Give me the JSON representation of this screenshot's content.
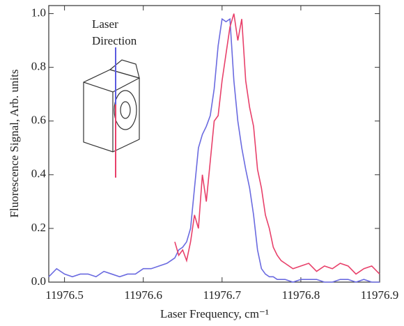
{
  "chart_data": {
    "type": "line",
    "xlabel": "Laser Frequency, cm⁻¹",
    "ylabel": "Fluorescence Signal, Arb. units",
    "annotation_lines": [
      "Laser",
      "Direction"
    ],
    "xlim": [
      11976.48,
      11976.9
    ],
    "ylim": [
      0,
      1.03
    ],
    "xticks": [
      11976.5,
      11976.6,
      11976.7,
      11976.8,
      11976.9
    ],
    "yticks": [
      {
        "value": 0,
        "label": "0.0"
      },
      {
        "value": 0.2,
        "label": "0.2"
      },
      {
        "value": 0.4,
        "label": "0.4"
      },
      {
        "value": 0.6,
        "label": "0.6"
      },
      {
        "value": 0.8,
        "label": "0.8"
      },
      {
        "value": 1,
        "label": "1.0"
      }
    ],
    "x": [
      11976.48,
      11976.49,
      11976.5,
      11976.51,
      11976.52,
      11976.53,
      11976.54,
      11976.55,
      11976.56,
      11976.57,
      11976.58,
      11976.59,
      11976.6,
      11976.61,
      11976.62,
      11976.63,
      11976.635,
      11976.64,
      11976.645,
      11976.65,
      11976.655,
      11976.66,
      11976.665,
      11976.67,
      11976.675,
      11976.68,
      11976.685,
      11976.69,
      11976.695,
      11976.7,
      11976.705,
      11976.71,
      11976.715,
      11976.72,
      11976.725,
      11976.73,
      11976.735,
      11976.74,
      11976.745,
      11976.75,
      11976.755,
      11976.76,
      11976.765,
      11976.77,
      11976.775,
      11976.78,
      11976.79,
      11976.8,
      11976.81,
      11976.82,
      11976.83,
      11976.84,
      11976.85,
      11976.86,
      11976.87,
      11976.88,
      11976.89,
      11976.9
    ],
    "series": [
      {
        "color": "#6a6ae0",
        "values": [
          0.02,
          0.05,
          0.03,
          0.02,
          0.03,
          0.03,
          0.02,
          0.04,
          0.03,
          0.02,
          0.03,
          0.03,
          0.05,
          0.05,
          0.06,
          0.07,
          0.08,
          0.09,
          0.12,
          0.13,
          0.15,
          0.2,
          0.35,
          0.5,
          0.55,
          0.58,
          0.62,
          0.72,
          0.88,
          0.98,
          0.97,
          0.98,
          0.75,
          0.6,
          0.5,
          0.42,
          0.35,
          0.25,
          0.12,
          0.05,
          0.03,
          0.02,
          0.02,
          0.01,
          0.01,
          0.01,
          0,
          0.01,
          0.01,
          0.01,
          0,
          0,
          0.01,
          0.01,
          0,
          0.01,
          0,
          0
        ]
      },
      {
        "color": "#e8406a",
        "values": [
          null,
          null,
          null,
          null,
          null,
          null,
          null,
          null,
          null,
          null,
          null,
          null,
          null,
          null,
          null,
          null,
          null,
          0.15,
          0.1,
          0.12,
          0.08,
          0.15,
          0.25,
          0.2,
          0.4,
          0.3,
          0.45,
          0.6,
          0.62,
          0.75,
          0.85,
          0.95,
          1,
          0.9,
          0.98,
          0.75,
          0.65,
          0.58,
          0.42,
          0.35,
          0.25,
          0.2,
          0.13,
          0.1,
          0.08,
          0.07,
          0.05,
          0.06,
          0.07,
          0.04,
          0.06,
          0.05,
          0.07,
          0.06,
          0.03,
          0.05,
          0.06,
          0.03
        ]
      }
    ]
  }
}
